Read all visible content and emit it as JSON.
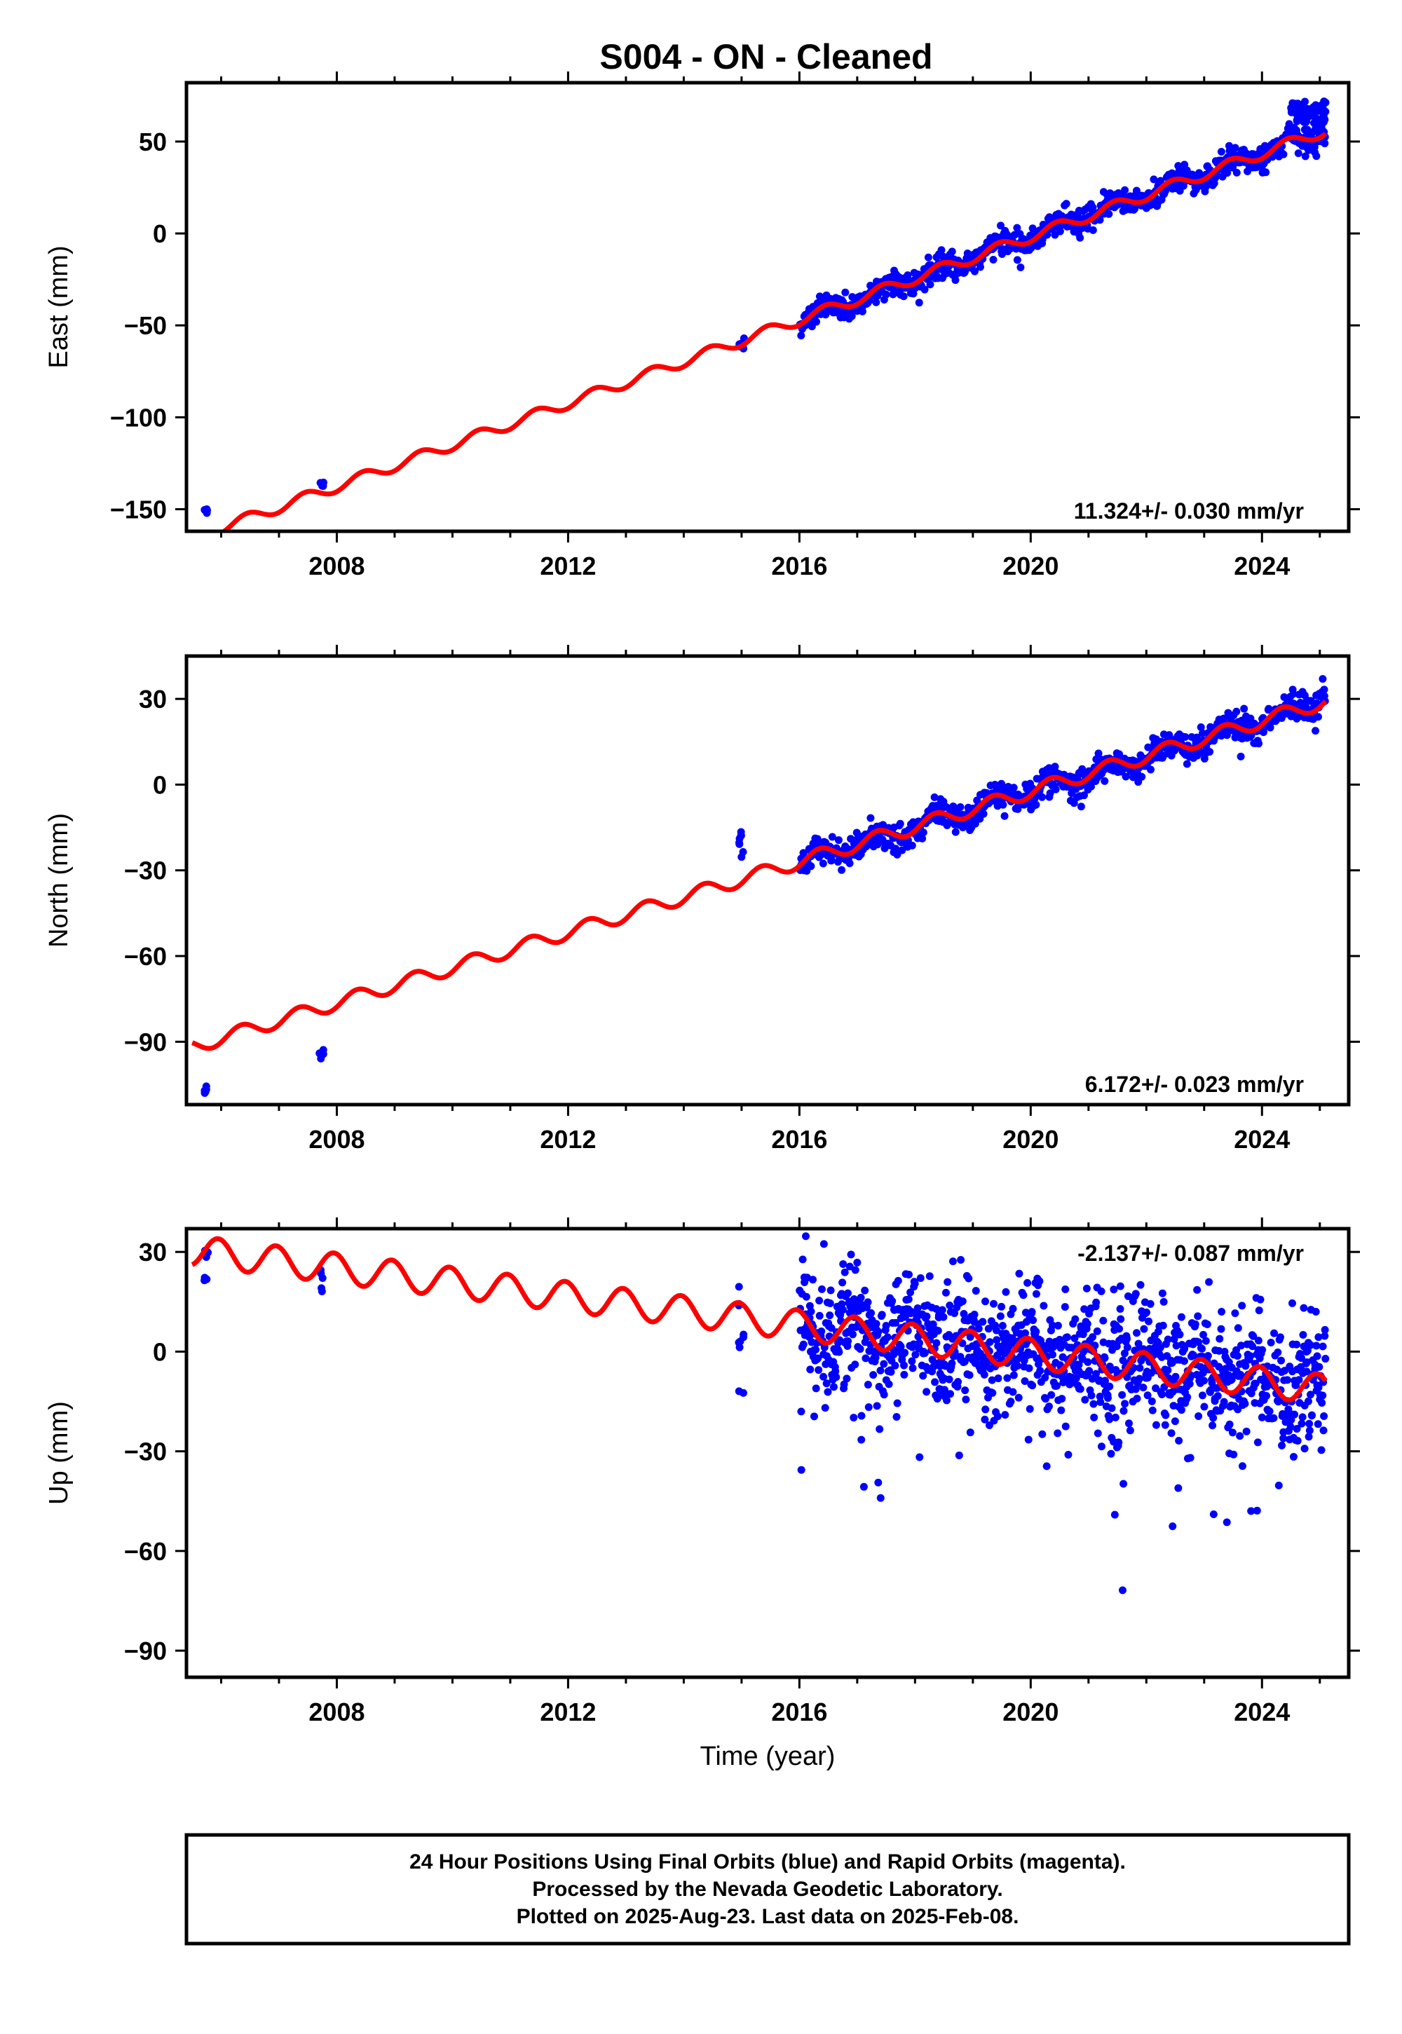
{
  "title": "S004  - ON - Cleaned",
  "footer": {
    "line1": "24 Hour Positions Using Final Orbits (blue) and Rapid Orbits (magenta).",
    "line2": "Processed by the Nevada Geodetic Laboratory.",
    "line3": "Plotted on 2025-Aug-23. Last data on 2025-Feb-08."
  },
  "colors": {
    "data": "#0000ff",
    "model": "#ff0000",
    "axes": "#000000",
    "background": "#ffffff"
  },
  "chart_data": [
    {
      "type": "scatter",
      "title": "",
      "xlabel": "",
      "ylabel": "East (mm)",
      "xlim": [
        2005.4,
        2025.5
      ],
      "ylim": [
        -162,
        82
      ],
      "xticks": [
        2008,
        2012,
        2016,
        2020,
        2024
      ],
      "yticks": [
        -150,
        -100,
        -50,
        0,
        50
      ],
      "rate_label": "11.324+/- 0.030 mm/yr",
      "rate_position": "bottom-right",
      "model": {
        "rate": 11.324,
        "y_at_2016": -47,
        "annual_amp": 3.0,
        "phase": 0.8
      },
      "series": [
        {
          "name": "",
          "clusters": [
            {
              "x": [
                2005.7,
                2005.78
              ],
              "y": [
                -153,
                -150
              ],
              "n": 5
            },
            {
              "x": [
                2007.7,
                2007.78
              ],
              "y": [
                -138,
                -135
              ],
              "n": 5
            },
            {
              "x": [
                2014.95,
                2015.05
              ],
              "y": [
                -64,
                -56
              ],
              "n": 8
            }
          ],
          "dense": {
            "x": [
              2016.0,
              2025.1
            ],
            "noise": 3.5,
            "outlier": 8,
            "density": 90
          }
        }
      ],
      "late_points": {
        "x": [
          2024.5,
          2025.1
        ],
        "y": [
          60,
          72
        ]
      }
    },
    {
      "type": "scatter",
      "title": "",
      "xlabel": "",
      "ylabel": "North (mm)",
      "xlim": [
        2005.4,
        2025.5
      ],
      "ylim": [
        -112,
        45
      ],
      "xticks": [
        2008,
        2012,
        2016,
        2020,
        2024
      ],
      "yticks": [
        -90,
        -60,
        -30,
        0,
        30
      ],
      "rate_label": "6.172+/- 0.023 mm/yr",
      "rate_position": "bottom-right",
      "model": {
        "rate": 6.172,
        "y_at_2016": -27,
        "annual_amp": 2.5,
        "phase": 0.9
      },
      "series": [
        {
          "name": "",
          "clusters": [
            {
              "x": [
                2005.7,
                2005.78
              ],
              "y": [
                -108,
                -104
              ],
              "n": 5
            },
            {
              "x": [
                2007.7,
                2007.78
              ],
              "y": [
                -96,
                -92
              ],
              "n": 5
            },
            {
              "x": [
                2014.95,
                2015.05
              ],
              "y": [
                -26,
                -16
              ],
              "n": 8
            }
          ],
          "dense": {
            "x": [
              2016.0,
              2025.1
            ],
            "noise": 2.5,
            "outlier": 5,
            "density": 90
          }
        }
      ]
    },
    {
      "type": "scatter",
      "title": "",
      "xlabel": "Time (year)",
      "ylabel": "Up (mm)",
      "xlim": [
        2005.4,
        2025.5
      ],
      "ylim": [
        -98,
        37
      ],
      "xticks": [
        2008,
        2012,
        2016,
        2020,
        2024
      ],
      "yticks": [
        -90,
        -60,
        -30,
        0,
        30
      ],
      "rate_label": "-2.137+/- 0.087 mm/yr",
      "rate_position": "top-right",
      "model": {
        "rate": -2.137,
        "y_at_2016": 8,
        "annual_amp": 4.5,
        "phase": 0.3
      },
      "series": [
        {
          "name": "",
          "clusters": [
            {
              "x": [
                2005.7,
                2005.78
              ],
              "y": [
                17,
                33
              ],
              "n": 6
            },
            {
              "x": [
                2007.7,
                2007.78
              ],
              "y": [
                16,
                26
              ],
              "n": 5
            },
            {
              "x": [
                2014.95,
                2015.05
              ],
              "y": [
                -13,
                23
              ],
              "n": 10
            }
          ],
          "dense": {
            "x": [
              2016.0,
              2025.1
            ],
            "noise": 9,
            "outlier": 45,
            "density": 130
          }
        }
      ]
    }
  ]
}
